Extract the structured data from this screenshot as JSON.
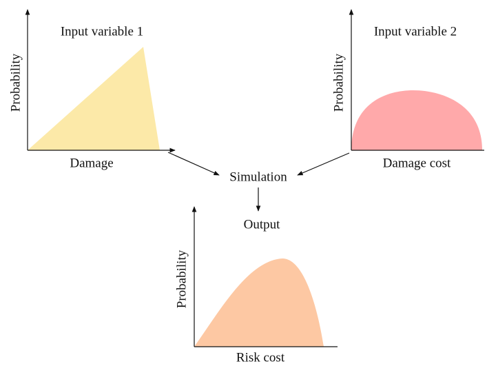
{
  "panels": [
    {
      "title": "Input variable 1",
      "x_label": "Damage",
      "y_label": "Probability"
    },
    {
      "title": "Input variable 2",
      "x_label": "Damage cost",
      "y_label": "Probability"
    },
    {
      "title": "Output",
      "x_label": "Risk cost",
      "y_label": "Probability"
    }
  ],
  "process": "Simulation"
}
